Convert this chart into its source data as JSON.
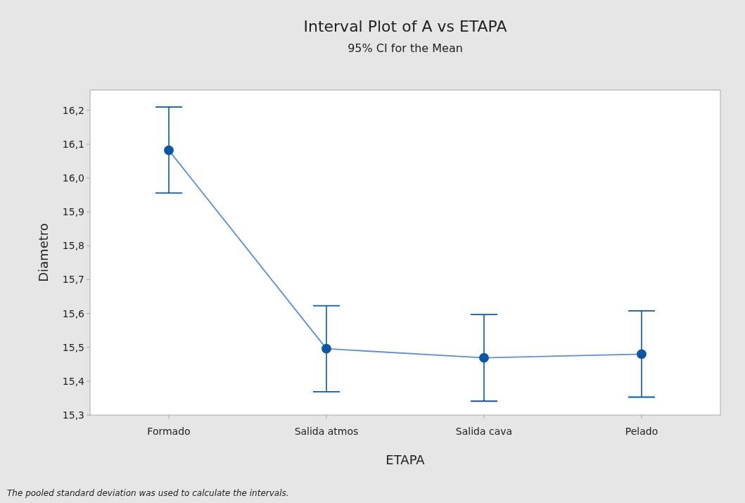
{
  "chart_data": {
    "type": "line",
    "title": "Interval Plot of A vs ETAPA",
    "subtitle": "95% CI for the Mean",
    "xlabel": "ETAPA",
    "ylabel": "Diametro",
    "categories": [
      "Formado",
      "Salida atmos",
      "Salida cava",
      "Pelado"
    ],
    "series": [
      {
        "color": "#0b56a0",
        "values": [
          16.082,
          15.496,
          15.469,
          15.48
        ],
        "errors": [
          [
            15.956,
            16.21
          ],
          [
            15.369,
            15.623
          ],
          [
            15.341,
            15.597
          ],
          [
            15.353,
            15.608
          ]
        ]
      }
    ],
    "ylim": [
      15.3,
      16.26
    ],
    "yticks": [
      {
        "value": 15.3,
        "label": "15,3"
      },
      {
        "value": 15.4,
        "label": "15,4"
      },
      {
        "value": 15.5,
        "label": "15,5"
      },
      {
        "value": 15.6,
        "label": "15,6"
      },
      {
        "value": 15.7,
        "label": "15,7"
      },
      {
        "value": 15.8,
        "label": "15,8"
      },
      {
        "value": 15.9,
        "label": "15,9"
      },
      {
        "value": 16.0,
        "label": "16,0"
      },
      {
        "value": 16.1,
        "label": "16,1"
      },
      {
        "value": 16.2,
        "label": "16,2"
      }
    ],
    "marker": "circle",
    "line_style": "solid",
    "annotations": [
      "The pooled standard deviation was used to calculate the intervals."
    ]
  }
}
